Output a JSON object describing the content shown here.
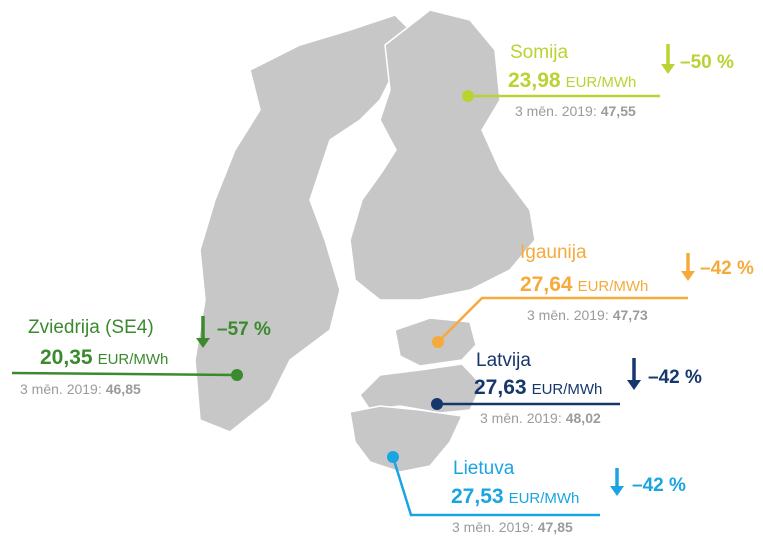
{
  "regions": [
    {
      "name": "Somija",
      "price": "23,98",
      "unit": "EUR/MWh",
      "prev_label": "3 mēn. 2019:",
      "prev_value": "47,55",
      "change": "–50 %",
      "color": "#bcd232"
    },
    {
      "name": "Igaunija",
      "price": "27,64",
      "unit": "EUR/MWh",
      "prev_label": "3 mēn. 2019:",
      "prev_value": "47,73",
      "change": "–42 %",
      "color": "#f6aa3c"
    },
    {
      "name": "Latvija",
      "price": "27,63",
      "unit": "EUR/MWh",
      "prev_label": "3 mēn. 2019:",
      "prev_value": "48,02",
      "change": "–42 %",
      "color": "#16376c"
    },
    {
      "name": "Lietuva",
      "price": "27,53",
      "unit": "EUR/MWh",
      "prev_label": "3 mēn. 2019:",
      "prev_value": "47,85",
      "change": "–42 %",
      "color": "#1ba4e2"
    },
    {
      "name": "Zviedrija (SE4)",
      "price": "20,35",
      "unit": "EUR/MWh",
      "prev_label": "3 mēn. 2019:",
      "prev_value": "46,85",
      "change": "–57 %",
      "color": "#3b8a2e"
    }
  ]
}
